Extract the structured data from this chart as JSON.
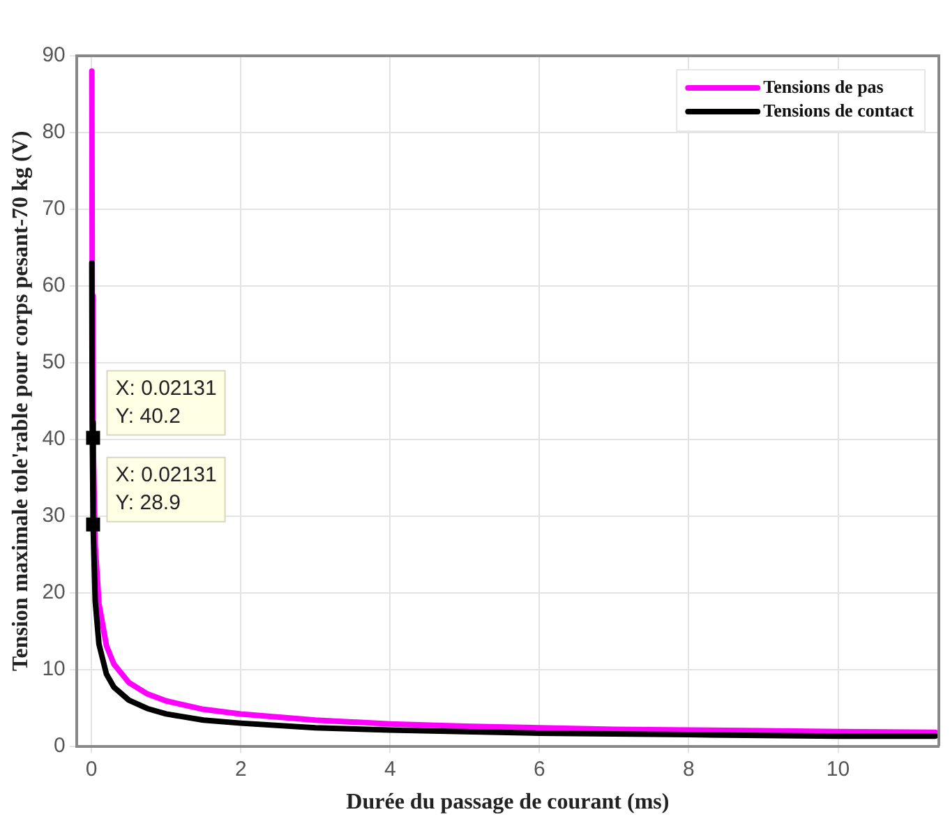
{
  "chart_data": {
    "type": "line",
    "xlabel": "Durée du passage de courant (ms)",
    "ylabel": "Tension maximale tole'rable pour corps pesant-70 kg (V)",
    "x": [
      0.0045,
      0.01,
      0.02131,
      0.05,
      0.1,
      0.2,
      0.3,
      0.5,
      0.75,
      1,
      1.5,
      2,
      3,
      4,
      5,
      6,
      7,
      8,
      9,
      10,
      11.3
    ],
    "series": [
      {
        "name": "Tensions de pas",
        "color": "#ff00ff",
        "values": [
          88,
          58.7,
          40.2,
          26.2,
          18.6,
          13.1,
          10.7,
          8.3,
          6.8,
          5.9,
          4.8,
          4.2,
          3.4,
          2.9,
          2.6,
          2.4,
          2.2,
          2.1,
          2.0,
          1.9,
          1.8
        ]
      },
      {
        "name": "Tensions de contact",
        "color": "#000000",
        "values": [
          63,
          42.2,
          28.9,
          18.9,
          13.3,
          9.4,
          7.7,
          6.0,
          4.9,
          4.2,
          3.4,
          3.0,
          2.4,
          2.1,
          1.9,
          1.7,
          1.6,
          1.5,
          1.4,
          1.3,
          1.3
        ]
      }
    ],
    "annotations": [
      {
        "text": "X: 0.02131\nY: 40.2",
        "x": 0.02131,
        "y": 40.2
      },
      {
        "text": "X: 0.02131\nY: 28.9",
        "x": 0.02131,
        "y": 28.9
      }
    ],
    "xlim": [
      -0.2,
      11.35
    ],
    "xticks": [
      0,
      2,
      4,
      6,
      8,
      10
    ],
    "ylim": [
      0,
      90
    ],
    "yticks": [
      0,
      10,
      20,
      30,
      40,
      50,
      60,
      70,
      80,
      90
    ],
    "grid": true,
    "legend": "top right",
    "marker": "none",
    "line_style": "solid"
  }
}
